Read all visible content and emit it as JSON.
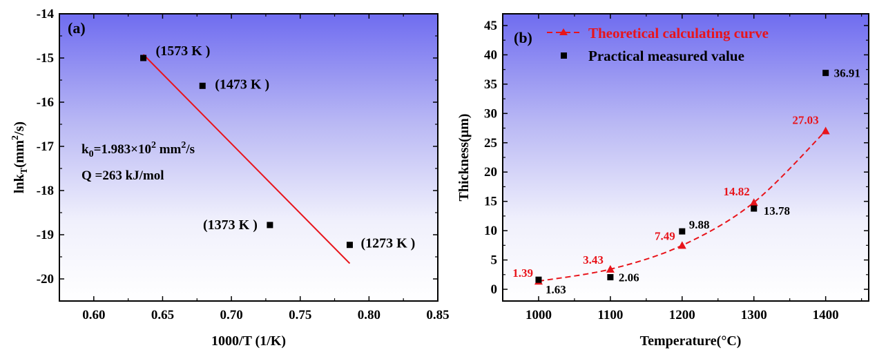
{
  "chart_data": [
    {
      "panel": "(a)",
      "type": "scatter",
      "xlabel": "1000/T (1/K)",
      "ylabel": "lnk",
      "ylabel_sub": "T",
      "ylabel_tail": "(mm",
      "ylabel_sup": "2",
      "ylabel_end": "/s)",
      "xlim": [
        0.575,
        0.85
      ],
      "ylim": [
        -20.5,
        -14
      ],
      "xticks": [
        0.6,
        0.65,
        0.7,
        0.75,
        0.8,
        0.85
      ],
      "xtick_labels": [
        "0.60",
        "0.65",
        "0.70",
        "0.75",
        "0.80",
        "0.85"
      ],
      "yticks": [
        -20,
        -19,
        -18,
        -17,
        -16,
        -15,
        -14
      ],
      "ytick_labels": [
        "-20",
        "-19",
        "-18",
        "-17",
        "-16",
        "-15",
        "-14"
      ],
      "points": [
        {
          "x": 0.636,
          "y": -15.0,
          "label": "(1573 K )"
        },
        {
          "x": 0.679,
          "y": -15.63,
          "label": "(1473 K )"
        },
        {
          "x": 0.728,
          "y": -18.78,
          "label": "(1373 K )"
        },
        {
          "x": 0.786,
          "y": -19.23,
          "label": "(1273 K )"
        }
      ],
      "fit_line": {
        "x": [
          0.636,
          0.786
        ],
        "y": [
          -14.92,
          -19.65
        ]
      },
      "annotation": {
        "k0_prefix": "k",
        "k0_sub": "0",
        "k0_mid": "=1.983×10",
        "k0_sup": "2",
        "k0_unit_a": " mm",
        "k0_unit_sup": "2",
        "k0_unit_b": "/s",
        "q": "Q =263 kJ/mol"
      },
      "colors": {
        "fit": "#e8141b",
        "points": "#000000"
      }
    },
    {
      "panel": "(b)",
      "type": "scatter",
      "xlabel": "Temperature(°C)",
      "ylabel": "Thickness(μm)",
      "xlim": [
        950,
        1460
      ],
      "ylim": [
        -2,
        47
      ],
      "xticks": [
        1000,
        1100,
        1200,
        1300,
        1400
      ],
      "xtick_labels": [
        "1000",
        "1100",
        "1200",
        "1300",
        "1400"
      ],
      "yticks": [
        0,
        5,
        10,
        15,
        20,
        25,
        30,
        35,
        40,
        45
      ],
      "ytick_labels": [
        "0",
        "5",
        "10",
        "15",
        "20",
        "25",
        "30",
        "35",
        "40",
        "45"
      ],
      "series": [
        {
          "name": "Theoretical calculating curve",
          "marker": "triangle",
          "line": "dashed",
          "color": "#e8141b",
          "x": [
            1000,
            1100,
            1200,
            1300,
            1400
          ],
          "y": [
            1.39,
            3.43,
            7.49,
            14.82,
            27.03
          ],
          "labels": [
            "1.39",
            "3.43",
            "7.49",
            "14.82",
            "27.03"
          ]
        },
        {
          "name": "Practical measured value",
          "marker": "square",
          "color": "#000000",
          "x": [
            1000,
            1100,
            1200,
            1300,
            1400
          ],
          "y": [
            1.63,
            2.06,
            9.88,
            13.78,
            36.91
          ],
          "labels": [
            "1.63",
            "2.06",
            "9.88",
            "13.78",
            "36.91"
          ]
        }
      ],
      "legend_position": "top-left"
    }
  ]
}
